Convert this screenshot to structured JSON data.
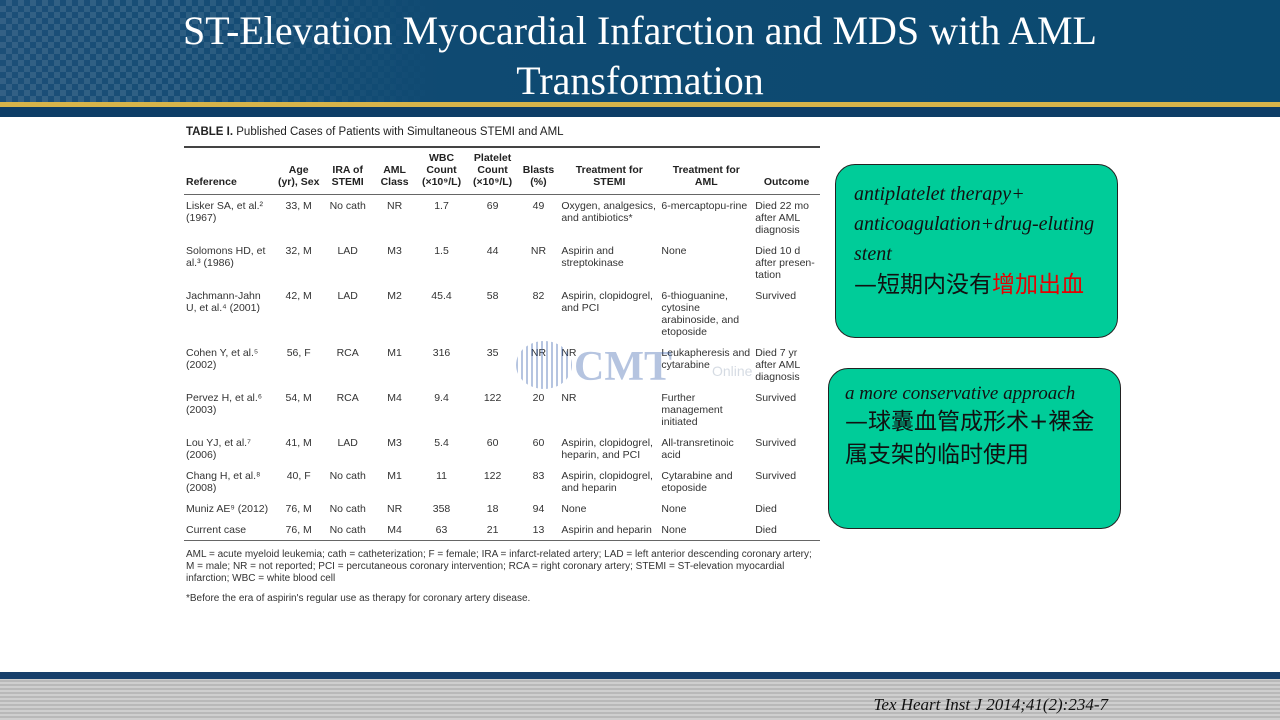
{
  "slide": {
    "title": "ST-Elevation Myocardial Infarction and MDS with AML Transformation",
    "citation": "Tex Heart Inst J 2014;41(2):234-7"
  },
  "table": {
    "label": "TABLE I.",
    "caption": "Published Cases of Patients with Simultaneous STEMI and AML",
    "headers": [
      "Reference",
      "Age (yr), Sex",
      "IRA of STEMI",
      "AML Class",
      "WBC Count (×10⁹/L)",
      "Platelet Count (×10⁹/L)",
      "Blasts (%)",
      "Treatment for STEMI",
      "Treatment for AML",
      "Outcome"
    ],
    "rows": [
      [
        "Lisker SA, et al.² (1967)",
        "33, M",
        "No cath",
        "NR",
        "1.7",
        "69",
        "49",
        "Oxygen, analgesics, and antibiotics*",
        "6-mercaptopu-rine",
        "Died 22 mo after AML diagnosis"
      ],
      [
        "Solomons HD, et al.³ (1986)",
        "32, M",
        "LAD",
        "M3",
        "1.5",
        "44",
        "NR",
        "Aspirin and streptokinase",
        "None",
        "Died 10 d after presen-tation"
      ],
      [
        "Jachmann-Jahn U, et al.⁴ (2001)",
        "42, M",
        "LAD",
        "M2",
        "45.4",
        "58",
        "82",
        "Aspirin, clopidogrel, and PCI",
        "6-thioguanine, cytosine arabinoside, and etoposide",
        "Survived"
      ],
      [
        "Cohen Y, et al.⁵ (2002)",
        "56, F",
        "RCA",
        "M1",
        "316",
        "35",
        "NR",
        "NR",
        "Leukapheresis and cytarabine",
        "Died 7 yr after AML diagnosis"
      ],
      [
        "Pervez H, et al.⁶ (2003)",
        "54, M",
        "RCA",
        "M4",
        "9.4",
        "122",
        "20",
        "NR",
        "Further management initiated",
        "Survived"
      ],
      [
        "Lou YJ, et al.⁷ (2006)",
        "41, M",
        "LAD",
        "M3",
        "5.4",
        "60",
        "60",
        "Aspirin, clopidogrel, heparin, and PCI",
        "All-transretinoic acid",
        "Survived"
      ],
      [
        "Chang H, et al.⁸ (2008)",
        "40, F",
        "No cath",
        "M1",
        "11",
        "122",
        "83",
        "Aspirin, clopidogrel, and heparin",
        "Cytarabine and etoposide",
        "Survived"
      ],
      [
        "Muniz AE⁹ (2012)",
        "76, M",
        "No cath",
        "NR",
        "358",
        "18",
        "94",
        "None",
        "None",
        "Died"
      ],
      [
        "Current case",
        "76, M",
        "No cath",
        "M4",
        "63",
        "21",
        "13",
        "Aspirin and heparin",
        "None",
        "Died"
      ]
    ],
    "footnote": "AML = acute myeloid leukemia; cath = catheterization; F = female; IRA = infarct-related artery; LAD = left anterior descending coronary artery; M = male; NR = not reported; PCI = percutaneous coronary intervention; RCA = right coronary artery; STEMI = ST-elevation myocardial infarction; WBC = white blood cell",
    "footnote_star": "*Before the era of aspirin's regular use as therapy for coronary artery disease."
  },
  "watermark": {
    "text": "CMT",
    "sub": "Online"
  },
  "callout1": {
    "en": "antiplatelet therapy+ anticoagulation+drug-eluting stent",
    "zh_prefix": "—短期内没有",
    "zh_red": "增加出血",
    "bg": "#00cc99"
  },
  "callout2": {
    "en": "a more conservative approach",
    "zh": "—球囊血管成形术+裸金属支架的临时使用",
    "bg": "#00cc99"
  },
  "colors": {
    "header": "#0b4a70",
    "accent_gold": "#d7b44a",
    "red_text": "#e60000"
  }
}
